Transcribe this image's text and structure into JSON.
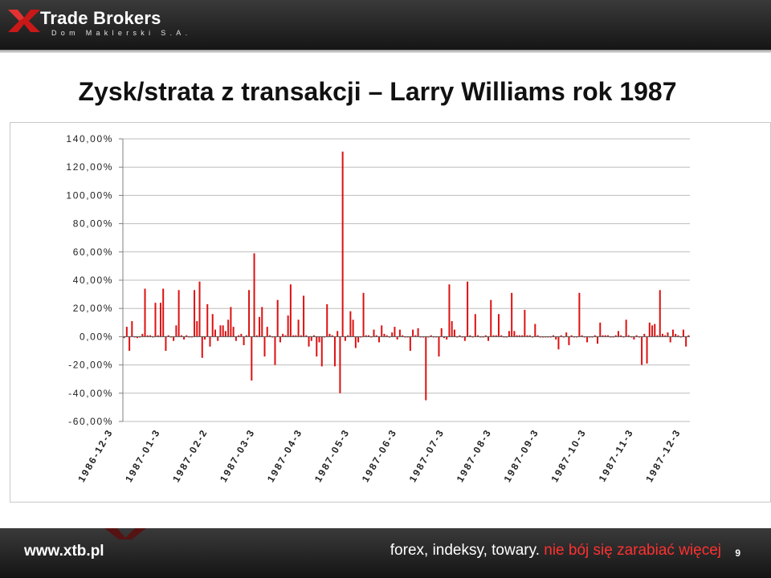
{
  "header": {
    "brand_name": "Trade Brokers",
    "brand_sub": "Dom Maklerski S.A."
  },
  "slide": {
    "title": "Zysk/strata z transakcji – Larry Williams rok 1987"
  },
  "chart_data": {
    "type": "bar",
    "title": "",
    "xlabel": "",
    "ylabel": "",
    "ylim": [
      -60,
      140
    ],
    "yticks": [
      140,
      120,
      100,
      80,
      60,
      40,
      20,
      0,
      -20,
      -40,
      -60
    ],
    "ytick_labels": [
      "140,00%",
      "120,00%",
      "100,00%",
      "80,00%",
      "60,00%",
      "40,00%",
      "20,00%",
      "0,00%",
      "-20,00%",
      "-40,00%",
      "-60,00%"
    ],
    "xtick_labels": [
      "1986-12-3",
      "1987-01-3",
      "1987-02-2",
      "1987-03-3",
      "1987-04-3",
      "1987-05-3",
      "1987-06-3",
      "1987-07-3",
      "1987-08-3",
      "1987-09-3",
      "1987-10-3",
      "1987-11-3",
      "1987-12-3"
    ],
    "grid": "horizontal",
    "legend": "none",
    "colors": {
      "bar": "#dd1111",
      "grid": "#bdbdbd",
      "axis": "#808080"
    },
    "series": [
      {
        "values": [
          -1,
          7,
          -10,
          11,
          0,
          -1,
          0,
          2,
          34,
          1,
          1,
          0,
          24,
          1,
          24,
          34,
          -10,
          1,
          0,
          -3,
          8,
          33,
          1,
          -2,
          1,
          0,
          0,
          33,
          11,
          39,
          -15,
          -2,
          23,
          -7,
          16,
          5,
          -3,
          8,
          8,
          4,
          12,
          21,
          7,
          -3,
          1,
          2,
          -6,
          1,
          33,
          -31,
          59,
          1,
          14,
          21,
          -14,
          7,
          1,
          0,
          -20,
          26,
          -4,
          2,
          1,
          15,
          37,
          1,
          1,
          12,
          1,
          29,
          1,
          -7,
          -3,
          1,
          -14,
          -4,
          -21,
          0,
          23,
          2,
          1,
          -21,
          4,
          -40,
          131,
          -3,
          1,
          18,
          12,
          -8,
          -4,
          0,
          31,
          1,
          1,
          0,
          5,
          1,
          -4,
          8,
          2,
          1,
          0,
          3,
          7,
          -2,
          5,
          1,
          0,
          0,
          -10,
          5,
          1,
          6,
          0,
          0,
          -45,
          0,
          1,
          0,
          0,
          -14,
          6,
          -1,
          -2,
          37,
          11,
          5,
          0,
          1,
          0,
          -3,
          39,
          1,
          0,
          16,
          1,
          0,
          0,
          1,
          -3,
          26,
          1,
          1,
          16,
          1,
          0,
          0,
          4,
          31,
          4,
          1,
          1,
          1,
          19,
          1,
          1,
          0,
          9,
          1,
          0,
          0,
          0,
          0,
          0,
          1,
          -2,
          -9,
          1,
          0,
          3,
          -6,
          1,
          0,
          0,
          31,
          1,
          0,
          -4,
          0,
          0,
          1,
          -5,
          10,
          1,
          1,
          1,
          0,
          0,
          1,
          4,
          1,
          0,
          12,
          1,
          0,
          -2,
          1,
          0,
          -20,
          2,
          -19,
          10,
          8,
          9,
          1,
          33,
          2,
          1,
          3,
          -4,
          5,
          2,
          1,
          0,
          5,
          -7,
          1
        ]
      }
    ]
  },
  "footer": {
    "url": "www.xtb.pl",
    "slogan_main": "forex, indeksy, towary.",
    "slogan_accent": "nie bój się zarabiać więcej",
    "page_number": "9"
  }
}
